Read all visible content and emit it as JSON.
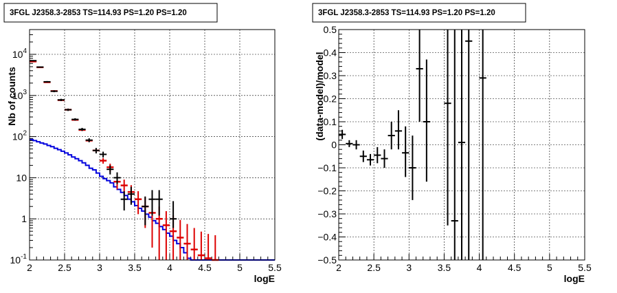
{
  "panels": [
    {
      "title": "3FGL J2358.3-2853 TS=114.93 PS=1.20 PS=1.20",
      "ylabel": "Nb of counts",
      "xlabel": "logE"
    },
    {
      "title": "3FGL J2358.3-2853 TS=114.93 PS=1.20 PS=1.20",
      "ylabel": "(data-model)/model",
      "xlabel": "logE"
    }
  ],
  "chart_data": [
    {
      "type": "scatter",
      "title": "3FGL J2358.3-2853 TS=114.93 PS=1.20 PS=1.20",
      "xlabel": "logE",
      "ylabel": "Nb of counts",
      "xlim": [
        2,
        5.5
      ],
      "ylim": [
        0.1,
        40000
      ],
      "yscale": "log",
      "grid": true,
      "xticks": [
        "2",
        "2.5",
        "3",
        "3.5",
        "4",
        "4.5",
        "5",
        "5.5"
      ],
      "yticks": [
        {
          "base": "10",
          "exp": "-1",
          "value": 0.1
        },
        {
          "base": "1",
          "exp": "",
          "value": 1
        },
        {
          "base": "10",
          "exp": "",
          "value": 10
        },
        {
          "base": "10",
          "exp": "2",
          "value": 100
        },
        {
          "base": "10",
          "exp": "3",
          "value": 1000
        },
        {
          "base": "10",
          "exp": "4",
          "value": 10000
        }
      ],
      "colors": {
        "data": "#000000",
        "model_total": "#dd0000",
        "model_source": "#0000dd"
      },
      "series": [
        {
          "kind": "data",
          "points": [
            {
              "x": 2.05,
              "y": 7000,
              "lo": 6850,
              "hi": 7150
            },
            {
              "x": 2.15,
              "y": 4900,
              "lo": 4770,
              "hi": 5030
            },
            {
              "x": 2.25,
              "y": 2150,
              "lo": 2060,
              "hi": 2240
            },
            {
              "x": 2.35,
              "y": 1270,
              "lo": 1200,
              "hi": 1340
            },
            {
              "x": 2.45,
              "y": 780,
              "lo": 730,
              "hi": 830
            },
            {
              "x": 2.55,
              "y": 450,
              "lo": 420,
              "hi": 480
            },
            {
              "x": 2.65,
              "y": 262,
              "lo": 245,
              "hi": 280
            },
            {
              "x": 2.75,
              "y": 150,
              "lo": 137,
              "hi": 163
            },
            {
              "x": 2.85,
              "y": 82,
              "lo": 73,
              "hi": 91
            },
            {
              "x": 2.95,
              "y": 46,
              "lo": 39,
              "hi": 53
            },
            {
              "x": 3.05,
              "y": 37,
              "lo": 31,
              "hi": 43
            },
            {
              "x": 3.15,
              "y": 16,
              "lo": 12,
              "hi": 20
            },
            {
              "x": 3.25,
              "y": 10,
              "lo": 7,
              "hi": 13.5
            },
            {
              "x": 3.35,
              "y": 3,
              "lo": 1.6,
              "hi": 4.7
            },
            {
              "x": 3.45,
              "y": 4,
              "lo": 2.2,
              "hi": 6.0
            },
            {
              "x": 3.65,
              "y": 2,
              "lo": 0.7,
              "hi": 3.5
            },
            {
              "x": 3.75,
              "y": 3,
              "lo": 1.2,
              "hi": 5.0
            },
            {
              "x": 3.85,
              "y": 3,
              "lo": 1.2,
              "hi": 5.0
            },
            {
              "x": 4.05,
              "y": 1,
              "lo": 0.6,
              "hi": 2.7
            }
          ]
        },
        {
          "kind": "model_total",
          "points": [
            {
              "x": 2.05,
              "y": 6700,
              "err": 0
            },
            {
              "x": 2.15,
              "y": 4850,
              "err": 0
            },
            {
              "x": 2.25,
              "y": 2100,
              "err": 0
            },
            {
              "x": 2.35,
              "y": 1280,
              "err": 0
            },
            {
              "x": 2.45,
              "y": 770,
              "err": 0
            },
            {
              "x": 2.55,
              "y": 450,
              "err": 0
            },
            {
              "x": 2.65,
              "y": 255,
              "err": 0
            },
            {
              "x": 2.75,
              "y": 145,
              "err": 0
            },
            {
              "x": 2.85,
              "y": 80,
              "err": 0
            },
            {
              "x": 2.95,
              "y": 46,
              "err": 0
            },
            {
              "x": 3.05,
              "y": 26,
              "err": 4
            },
            {
              "x": 3.15,
              "y": 18,
              "err": 4
            },
            {
              "x": 3.25,
              "y": 8,
              "err": 2.8
            },
            {
              "x": 3.35,
              "y": 6.5,
              "err": 2.5
            },
            {
              "x": 3.45,
              "y": 4.5,
              "err": 2.1
            },
            {
              "x": 3.55,
              "y": 3,
              "err": 1.7
            },
            {
              "x": 3.65,
              "y": 2,
              "err": 1.4
            },
            {
              "x": 3.75,
              "y": 1.4,
              "err": 1.2
            },
            {
              "x": 3.85,
              "y": 1,
              "err": 1.0
            },
            {
              "x": 3.95,
              "y": 0.7,
              "err": 0.84
            },
            {
              "x": 4.05,
              "y": 0.5,
              "err": 0.71
            },
            {
              "x": 4.15,
              "y": 0.35,
              "err": 0.59
            },
            {
              "x": 4.25,
              "y": 0.25,
              "err": 0.5
            },
            {
              "x": 4.35,
              "y": 0.18,
              "err": 0.42
            },
            {
              "x": 4.45,
              "y": 0.13,
              "err": 0.36
            },
            {
              "x": 4.55,
              "y": 0.11,
              "err": 0.32
            },
            {
              "x": 4.65,
              "y": 0.1,
              "err": 0.3
            }
          ]
        },
        {
          "kind": "model_source",
          "bin_width": 0.05,
          "x_start": 2.0,
          "values": [
            85,
            80,
            75,
            70,
            66,
            61,
            57,
            52,
            48,
            44,
            40,
            36,
            32,
            29,
            26,
            23,
            20,
            17,
            15.5,
            13,
            10.8,
            9.5,
            8.5,
            7.5,
            6.0,
            5.2,
            4.4,
            3.7,
            3.0,
            2.6,
            2.1,
            1.8,
            1.55,
            1.3,
            1.1,
            0.9,
            0.78,
            0.65,
            0.55,
            0.45,
            0.38,
            0.3,
            0.25,
            0.2,
            0.15,
            0.11,
            0.1,
            0.1,
            0.1,
            0.1,
            0.1,
            0.1,
            0.1,
            0.1,
            0.1,
            0.1,
            0.1,
            0.1,
            0.1,
            0.1,
            0.1,
            0.1,
            0.1,
            0.1,
            0.1,
            0.1,
            0.1,
            0.1,
            0.1,
            0.1
          ]
        }
      ]
    },
    {
      "type": "scatter",
      "title": "3FGL J2358.3-2853 TS=114.93 PS=1.20 PS=1.20",
      "xlabel": "logE",
      "ylabel": "(data-model)/model",
      "xlim": [
        2,
        5.5
      ],
      "ylim": [
        -0.5,
        0.5
      ],
      "grid": true,
      "xticks": [
        "2",
        "2.5",
        "3",
        "3.5",
        "4",
        "4.5",
        "5",
        "5.5"
      ],
      "yticks": [
        "−0.5",
        "−0.4",
        "−0.3",
        "−0.2",
        "−0.1",
        "0",
        "0.1",
        "0.2",
        "0.3",
        "0.4",
        "0.5"
      ],
      "series": [
        {
          "kind": "residuals",
          "points": [
            {
              "x": 2.05,
              "y": 0.045,
              "lo": 0.025,
              "hi": 0.065
            },
            {
              "x": 2.15,
              "y": 0.005,
              "lo": -0.01,
              "hi": 0.02
            },
            {
              "x": 2.25,
              "y": 0.0,
              "lo": -0.02,
              "hi": 0.02
            },
            {
              "x": 2.35,
              "y": -0.05,
              "lo": -0.075,
              "hi": -0.025
            },
            {
              "x": 2.45,
              "y": -0.065,
              "lo": -0.09,
              "hi": -0.04
            },
            {
              "x": 2.55,
              "y": -0.045,
              "lo": -0.08,
              "hi": -0.01
            },
            {
              "x": 2.65,
              "y": -0.06,
              "lo": -0.1,
              "hi": -0.02
            },
            {
              "x": 2.75,
              "y": 0.04,
              "lo": -0.02,
              "hi": 0.1
            },
            {
              "x": 2.85,
              "y": 0.06,
              "lo": -0.02,
              "hi": 0.15
            },
            {
              "x": 2.95,
              "y": -0.035,
              "lo": -0.14,
              "hi": 0.08
            },
            {
              "x": 3.05,
              "y": -0.1,
              "lo": -0.24,
              "hi": 0.04
            },
            {
              "x": 3.15,
              "y": 0.33,
              "lo": 0.1,
              "hi": 0.5
            },
            {
              "x": 3.25,
              "y": 0.1,
              "lo": -0.16,
              "hi": 0.37
            },
            {
              "x": 3.55,
              "y": 0.18,
              "lo": -0.35,
              "hi": 0.5
            },
            {
              "x": 3.65,
              "y": -0.33,
              "lo": -0.5,
              "hi": 0.5
            },
            {
              "x": 3.75,
              "y": 0.01,
              "lo": -0.5,
              "hi": 0.5
            },
            {
              "x": 3.85,
              "y": 0.45,
              "lo": -0.5,
              "hi": 0.5
            },
            {
              "x": 4.05,
              "y": 0.29,
              "lo": -0.5,
              "hi": 0.5
            }
          ]
        }
      ]
    }
  ]
}
